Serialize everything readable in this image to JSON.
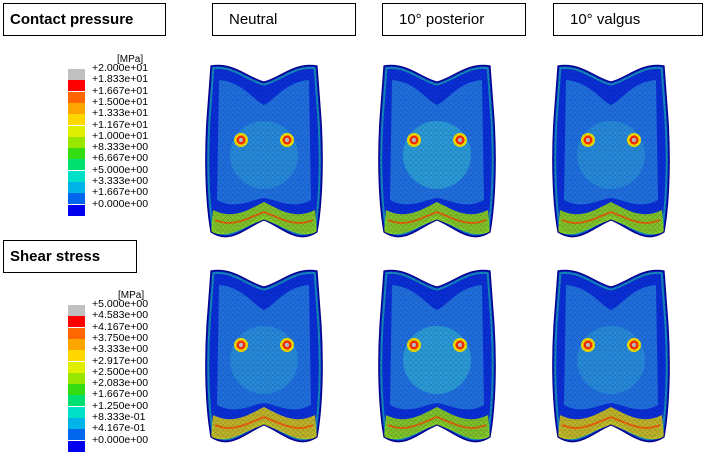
{
  "row_labels": {
    "contact": "Contact pressure",
    "shear": "Shear stress"
  },
  "columns": [
    "Neutral",
    "10° posterior",
    "10° valgus"
  ],
  "legends": {
    "contact": {
      "unit": "[MPa]",
      "ticks": [
        "+2.000e+01",
        "+1.833e+01",
        "+1.667e+01",
        "+1.500e+01",
        "+1.333e+01",
        "+1.167e+01",
        "+1.000e+01",
        "+8.333e+00",
        "+6.667e+00",
        "+5.000e+00",
        "+3.333e+00",
        "+1.667e+00",
        "+0.000e+00"
      ]
    },
    "shear": {
      "unit": "[MPa]",
      "ticks": [
        "+5.000e+00",
        "+4.583e+00",
        "+4.167e+00",
        "+3.750e+00",
        "+3.333e+00",
        "+2.917e+00",
        "+2.500e+00",
        "+2.083e+00",
        "+1.667e+00",
        "+1.250e+00",
        "+8.333e-01",
        "+4.167e-01",
        "+0.000e+00"
      ]
    }
  },
  "colormap": [
    "#c0c0c0",
    "#ff0000",
    "#ff6600",
    "#ffa500",
    "#ffd700",
    "#e0ee00",
    "#99e600",
    "#33dd11",
    "#00e070",
    "#00e0c8",
    "#00b4e8",
    "#0066ee",
    "#0000ee"
  ]
}
